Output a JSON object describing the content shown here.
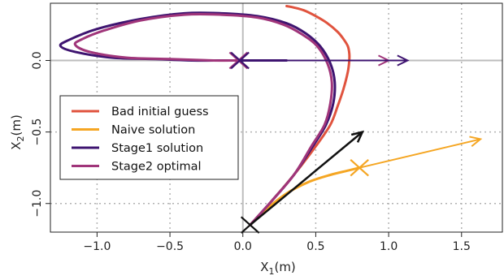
{
  "chart_data": {
    "type": "line",
    "xlabel": "X1(m)",
    "ylabel": "X2(m)",
    "xlim": [
      -1.32,
      1.78
    ],
    "ylim": [
      -1.2,
      0.4
    ],
    "x_ticks": [
      -1.0,
      -0.5,
      0.0,
      0.5,
      1.0,
      1.5
    ],
    "y_ticks": [
      -1.0,
      -0.5,
      0.0
    ],
    "x_tick_labels": [
      "−1.0",
      "−0.5",
      "0.0",
      "0.5",
      "1.0",
      "1.5"
    ],
    "y_tick_labels": [
      "−1.0",
      "−0.5",
      "0.0"
    ],
    "grid": "dotted",
    "legend_position": "left-center",
    "series": [
      {
        "name": "Bad initial guess",
        "color": "#e0533e",
        "x": [
          0.05,
          0.2,
          0.35,
          0.5,
          0.6,
          0.65,
          0.69,
          0.72,
          0.73,
          0.73,
          0.72,
          0.69,
          0.65,
          0.58,
          0.5,
          0.42,
          0.35,
          0.3
        ],
        "y": [
          -1.15,
          -0.98,
          -0.8,
          -0.6,
          -0.45,
          -0.32,
          -0.2,
          -0.08,
          0.0,
          0.05,
          0.1,
          0.15,
          0.2,
          0.26,
          0.31,
          0.35,
          0.37,
          0.38
        ]
      },
      {
        "name": "Naive solution",
        "color": "#f5a623",
        "x": [
          0.05,
          0.15,
          0.3,
          0.45,
          0.6,
          0.72,
          0.8
        ],
        "y": [
          -1.15,
          -1.05,
          -0.93,
          -0.85,
          -0.8,
          -0.77,
          -0.75
        ]
      },
      {
        "name": "Stage1 solution",
        "color": "#3e1470",
        "x": [
          0.05,
          0.2,
          0.35,
          0.48,
          0.57,
          0.62,
          0.63,
          0.6,
          0.53,
          0.43,
          0.3,
          0.1,
          -0.15,
          -0.4,
          -0.7,
          -1.0,
          -1.2,
          -1.25,
          -1.15,
          -0.9,
          -0.6,
          -0.35,
          -0.1,
          0.05,
          0.2,
          0.3
        ],
        "y": [
          -1.15,
          -0.98,
          -0.8,
          -0.6,
          -0.45,
          -0.3,
          -0.15,
          -0.02,
          0.1,
          0.19,
          0.26,
          0.31,
          0.33,
          0.33,
          0.29,
          0.22,
          0.14,
          0.1,
          0.06,
          0.02,
          0.01,
          0.0,
          0.0,
          0.0,
          0.0,
          0.0
        ]
      },
      {
        "name": "Stage2 optimal",
        "color": "#a0357a",
        "x": [
          0.05,
          0.2,
          0.35,
          0.47,
          0.56,
          0.6,
          0.61,
          0.58,
          0.51,
          0.41,
          0.28,
          0.1,
          -0.15,
          -0.4,
          -0.7,
          -0.95,
          -1.1,
          -1.15,
          -1.05,
          -0.8,
          -0.5,
          -0.2,
          -0.03
        ],
        "y": [
          -1.15,
          -0.98,
          -0.8,
          -0.6,
          -0.45,
          -0.3,
          -0.15,
          -0.02,
          0.1,
          0.18,
          0.25,
          0.3,
          0.32,
          0.32,
          0.28,
          0.21,
          0.15,
          0.11,
          0.06,
          0.02,
          0.01,
          0.0,
          0.0
        ]
      }
    ],
    "vectors": [
      {
        "color": "#111111",
        "x0": 0.05,
        "y0": -1.15,
        "x1": 0.82,
        "y1": -0.5
      },
      {
        "color": "#f5a623",
        "x0": 0.8,
        "y0": -0.75,
        "x1": 1.63,
        "y1": -0.55
      },
      {
        "color": "#a0357a",
        "x0": -0.03,
        "y0": 0.0,
        "x1": 1.0,
        "y1": 0.0
      },
      {
        "color": "#3e1470",
        "x0": -0.03,
        "y0": 0.0,
        "x1": 1.13,
        "y1": 0.0
      }
    ],
    "crosses": [
      {
        "color": "#111111",
        "x": 0.05,
        "y": -1.15
      },
      {
        "color": "#f5a623",
        "x": 0.8,
        "y": -0.75
      },
      {
        "color": "#a0357a",
        "x": -0.03,
        "y": 0.0
      },
      {
        "color": "#3e1470",
        "x": -0.02,
        "y": 0.0
      }
    ]
  }
}
